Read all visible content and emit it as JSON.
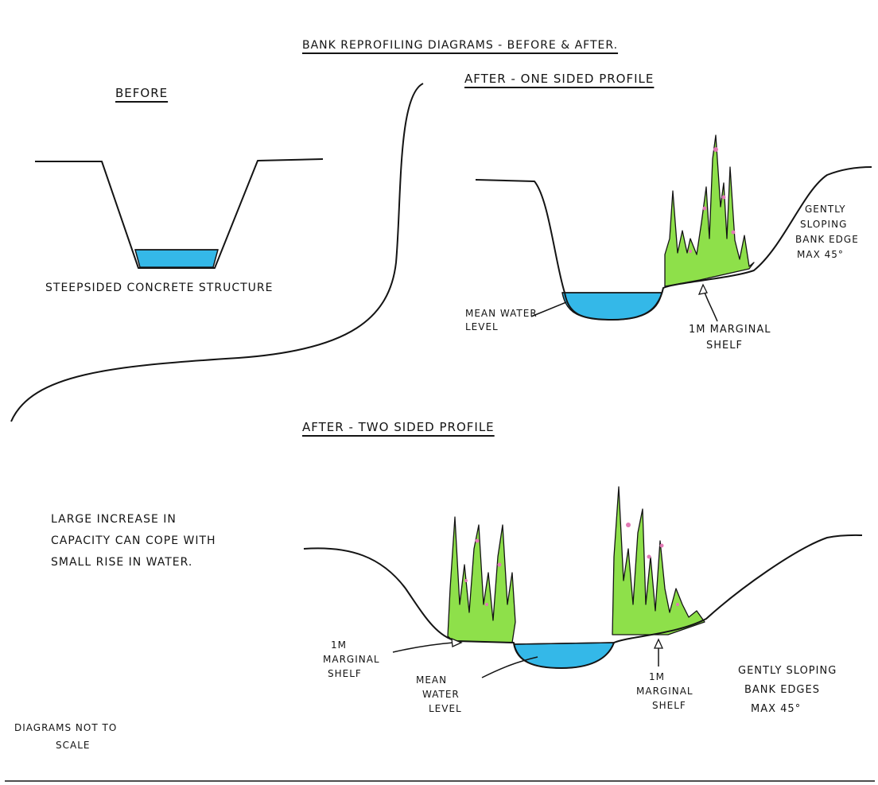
{
  "title": "BANK REPROFILING DIAGRAMS - BEFORE & AFTER.",
  "before": {
    "heading": "BEFORE",
    "caption": "STEEPSIDED CONCRETE STRUCTURE"
  },
  "one_sided": {
    "heading": "AFTER - ONE SIDED PROFILE",
    "water_label": [
      "MEAN WATER",
      "LEVEL"
    ],
    "shelf_label": [
      "1M MARGINAL",
      "SHELF"
    ],
    "slope_label": [
      "GENTLY",
      "SLOPING",
      "BANK EDGE",
      "MAX 45°"
    ]
  },
  "two_sided": {
    "heading": "AFTER - TWO SIDED PROFILE",
    "note": [
      "LARGE INCREASE IN",
      "CAPACITY CAN COPE WITH",
      "SMALL RISE IN WATER."
    ],
    "left_shelf_label": [
      "1M",
      "MARGINAL",
      "SHELF"
    ],
    "water_label": [
      "MEAN",
      "WATER",
      "LEVEL"
    ],
    "right_shelf_label": [
      "1M",
      "MARGINAL",
      "SHELF"
    ],
    "slope_label": [
      "GENTLY SLOPING",
      "BANK EDGES",
      "MAX 45°"
    ]
  },
  "footnote": [
    "DIAGRAMS NOT TO",
    "SCALE"
  ],
  "colors": {
    "ink": "#141414",
    "water": "#34b8e8",
    "vegetation": "#8ee04a",
    "flower": "#e27ab5"
  }
}
